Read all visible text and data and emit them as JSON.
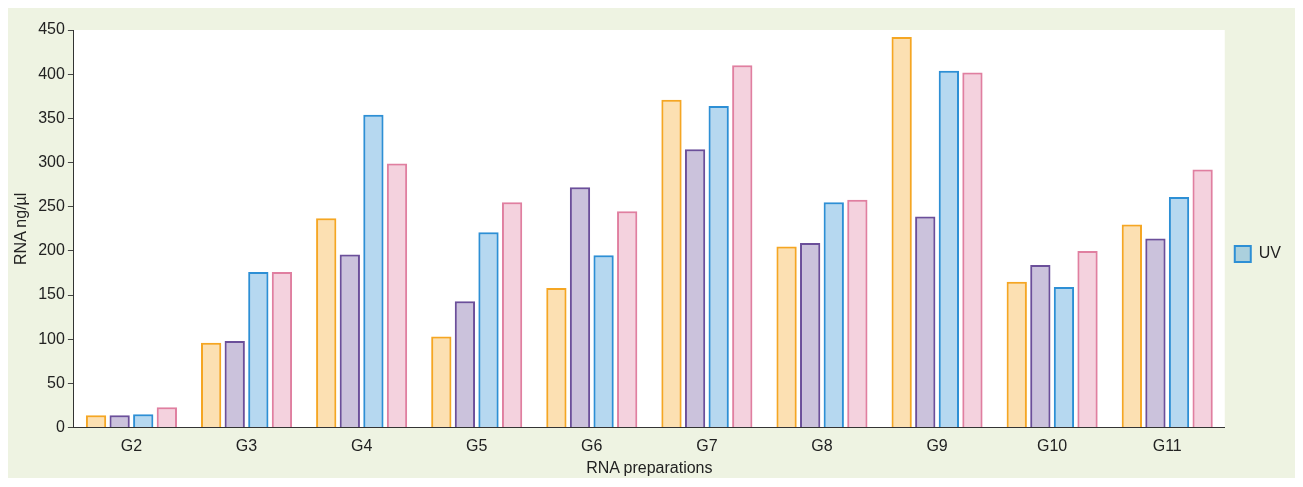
{
  "chart_data": {
    "type": "bar",
    "xlabel": "RNA preparations",
    "ylabel": "RNA ng/µl",
    "categories": [
      "G2",
      "G3",
      "G4",
      "G5",
      "G6",
      "G7",
      "G8",
      "G9",
      "G10",
      "G11"
    ],
    "series": [
      {
        "color": "#f5a623",
        "values": [
          14,
          96,
          237,
          103,
          158,
          371,
          205,
          442,
          165,
          230
        ]
      },
      {
        "color": "#6b4f9a",
        "values": [
          14,
          98,
          196,
          143,
          272,
          315,
          209,
          239,
          184,
          214
        ]
      },
      {
        "name": "UV",
        "color": "#2d8fd5",
        "values": [
          15,
          176,
          354,
          221,
          195,
          364,
          255,
          404,
          159,
          261
        ]
      },
      {
        "color": "#e07fa0",
        "values": [
          23,
          176,
          299,
          255,
          245,
          410,
          258,
          402,
          200,
          292
        ]
      }
    ],
    "ylim": [
      0,
      450
    ],
    "yticks": [
      0,
      50,
      100,
      150,
      200,
      250,
      300,
      350,
      400,
      450
    ],
    "grid": false,
    "legend": "right"
  }
}
